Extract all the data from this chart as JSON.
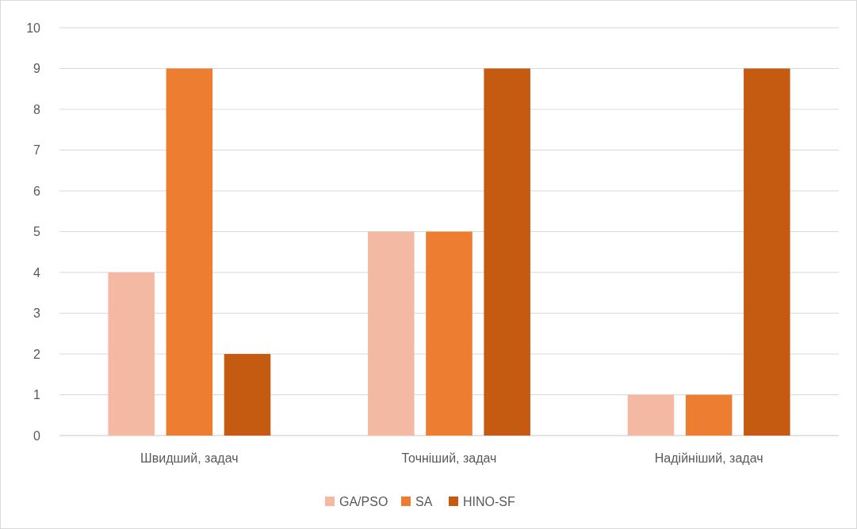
{
  "chart_data": {
    "type": "bar",
    "categories": [
      "Швидший, задач",
      "Точніший, задач",
      "Надійніший, задач"
    ],
    "series": [
      {
        "name": "GA/PSO",
        "color": "#f4b9a3",
        "values": [
          4,
          5,
          1
        ]
      },
      {
        "name": "SA",
        "color": "#ed7d31",
        "values": [
          9,
          5,
          1
        ]
      },
      {
        "name": "HINO-SF",
        "color": "#c55a11",
        "values": [
          2,
          9,
          9
        ]
      }
    ],
    "ylim": [
      0,
      10
    ],
    "yticks": [
      0,
      1,
      2,
      3,
      4,
      5,
      6,
      7,
      8,
      9,
      10
    ],
    "grid": "y",
    "legend": "bottom"
  }
}
